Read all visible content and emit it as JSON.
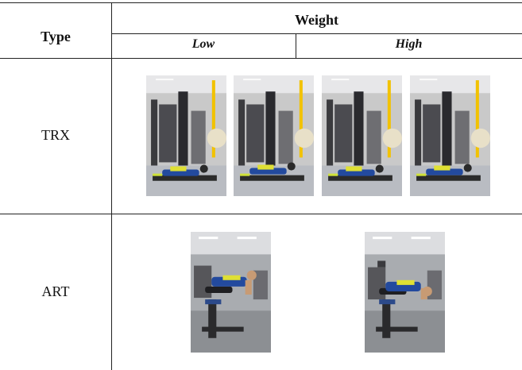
{
  "table": {
    "header": {
      "type": "Type",
      "weight": "Weight",
      "low": "Low",
      "high": "High"
    },
    "rows": [
      {
        "label": "TRX",
        "photos": [
          "trx-photo-1",
          "trx-photo-2",
          "trx-photo-3",
          "trx-photo-4"
        ]
      },
      {
        "label": "ART",
        "photos": [
          "art-photo-low",
          "art-photo-high"
        ]
      }
    ]
  }
}
